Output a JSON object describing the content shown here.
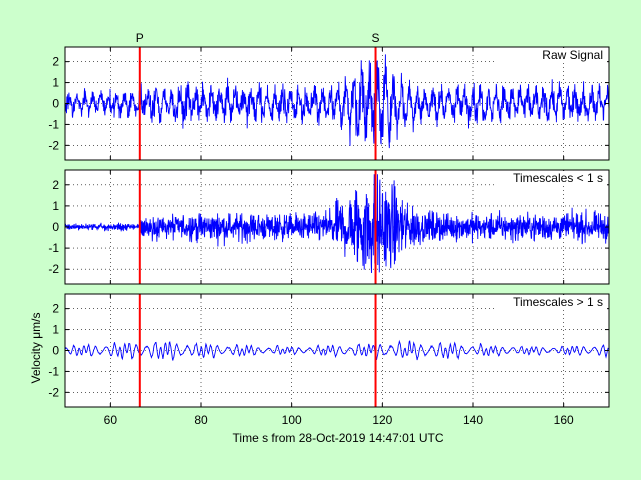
{
  "chart_data": {
    "type": "line",
    "xlabel": "Time s from 28-Oct-2019 14:47:01 UTC",
    "ylabel": "Velocity μm/s",
    "xlim": [
      50,
      170
    ],
    "x_ticks": [
      60,
      80,
      100,
      120,
      140,
      160
    ],
    "ylim": [
      -2.7,
      2.7
    ],
    "y_ticks": [
      -2,
      -1,
      0,
      1,
      2
    ],
    "grid": true,
    "line_color": "#0000ff",
    "marker_color": "#ff0000",
    "phase_markers": [
      {
        "label": "P",
        "x": 66.5
      },
      {
        "label": "S",
        "x": 118.5
      }
    ],
    "panels": [
      {
        "name": "Raw Signal",
        "label_position": "top-right",
        "envelope": "raw"
      },
      {
        "name": "Timescales < 1 s",
        "label_position": "top-right",
        "envelope": "high"
      },
      {
        "name": "Timescales > 1 s",
        "label_position": "top-right",
        "envelope": "low"
      }
    ]
  }
}
